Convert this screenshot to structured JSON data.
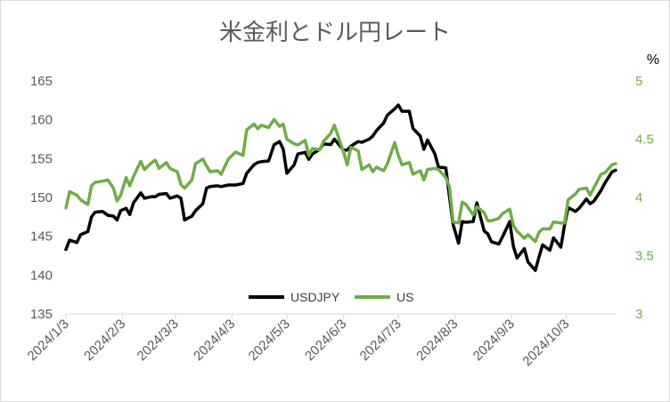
{
  "chart_data": {
    "type": "line",
    "title": "米金利とドル円レート",
    "x_tick_labels": [
      "2024/1/3",
      "2024/2/3",
      "2024/3/3",
      "2024/4/3",
      "2024/5/3",
      "2024/6/3",
      "2024/7/3",
      "2024/8/3",
      "2024/9/3",
      "2024/10/3"
    ],
    "y_left": {
      "range": [
        135,
        165
      ],
      "ticks": [
        "135",
        "140",
        "145",
        "150",
        "155",
        "160",
        "165"
      ]
    },
    "y_right": {
      "range": [
        3,
        5
      ],
      "ticks": [
        "3",
        "3.5",
        "4",
        "4.5",
        "5"
      ],
      "unit": "%"
    },
    "legend": {
      "position": "bottom-center"
    },
    "grid": false,
    "series": [
      {
        "name": "USDJPY",
        "axis": "left",
        "color": "#000000",
        "values": [
          [
            "2024-01-03",
            143.3
          ],
          [
            "2024-01-05",
            144.5
          ],
          [
            "2024-01-09",
            144.2
          ],
          [
            "2024-01-11",
            145.2
          ],
          [
            "2024-01-15",
            145.6
          ],
          [
            "2024-01-17",
            147.5
          ],
          [
            "2024-01-19",
            148.1
          ],
          [
            "2024-01-23",
            148.2
          ],
          [
            "2024-01-26",
            147.7
          ],
          [
            "2024-01-29",
            147.6
          ],
          [
            "2024-01-31",
            147.1
          ],
          [
            "2024-02-02",
            148.3
          ],
          [
            "2024-02-05",
            148.6
          ],
          [
            "2024-02-07",
            147.8
          ],
          [
            "2024-02-09",
            149.3
          ],
          [
            "2024-02-13",
            150.6
          ],
          [
            "2024-02-15",
            149.9
          ],
          [
            "2024-02-19",
            150.1
          ],
          [
            "2024-02-21",
            150.1
          ],
          [
            "2024-02-23",
            150.4
          ],
          [
            "2024-02-27",
            150.5
          ],
          [
            "2024-02-29",
            149.9
          ],
          [
            "2024-03-04",
            150.2
          ],
          [
            "2024-03-06",
            149.9
          ],
          [
            "2024-03-08",
            147.1
          ],
          [
            "2024-03-12",
            147.6
          ],
          [
            "2024-03-14",
            148.3
          ],
          [
            "2024-03-18",
            149.2
          ],
          [
            "2024-03-20",
            151.2
          ],
          [
            "2024-03-22",
            151.4
          ],
          [
            "2024-03-26",
            151.5
          ],
          [
            "2024-03-28",
            151.4
          ],
          [
            "2024-04-01",
            151.6
          ],
          [
            "2024-04-03",
            151.6
          ],
          [
            "2024-04-05",
            151.6
          ],
          [
            "2024-04-09",
            151.8
          ],
          [
            "2024-04-11",
            153.1
          ],
          [
            "2024-04-15",
            154.2
          ],
          [
            "2024-04-17",
            154.5
          ],
          [
            "2024-04-19",
            154.6
          ],
          [
            "2024-04-23",
            154.7
          ],
          [
            "2024-04-26",
            156.8
          ],
          [
            "2024-04-29",
            157.2
          ],
          [
            "2024-05-01",
            156.2
          ],
          [
            "2024-05-03",
            153.1
          ],
          [
            "2024-05-07",
            154.2
          ],
          [
            "2024-05-09",
            155.6
          ],
          [
            "2024-05-13",
            155.8
          ],
          [
            "2024-05-15",
            154.9
          ],
          [
            "2024-05-17",
            155.6
          ],
          [
            "2024-05-21",
            156.2
          ],
          [
            "2024-05-23",
            156.9
          ],
          [
            "2024-05-27",
            156.8
          ],
          [
            "2024-05-29",
            157.5
          ],
          [
            "2024-06-03",
            156.1
          ],
          [
            "2024-06-05",
            156.1
          ],
          [
            "2024-06-07",
            156.6
          ],
          [
            "2024-06-11",
            157.2
          ],
          [
            "2024-06-13",
            157.1
          ],
          [
            "2024-06-17",
            157.5
          ],
          [
            "2024-06-19",
            157.9
          ],
          [
            "2024-06-21",
            158.6
          ],
          [
            "2024-06-25",
            159.6
          ],
          [
            "2024-06-27",
            160.6
          ],
          [
            "2024-07-01",
            161.4
          ],
          [
            "2024-07-03",
            161.9
          ],
          [
            "2024-07-05",
            161.1
          ],
          [
            "2024-07-09",
            161.1
          ],
          [
            "2024-07-11",
            158.9
          ],
          [
            "2024-07-15",
            157.9
          ],
          [
            "2024-07-17",
            156.2
          ],
          [
            "2024-07-19",
            157.4
          ],
          [
            "2024-07-23",
            155.6
          ],
          [
            "2024-07-25",
            153.9
          ],
          [
            "2024-07-29",
            153.8
          ],
          [
            "2024-07-31",
            150.1
          ],
          [
            "2024-08-02",
            146.5
          ],
          [
            "2024-08-05",
            144.1
          ],
          [
            "2024-08-07",
            146.9
          ],
          [
            "2024-08-09",
            146.8
          ],
          [
            "2024-08-13",
            146.9
          ],
          [
            "2024-08-15",
            149.3
          ],
          [
            "2024-08-19",
            145.7
          ],
          [
            "2024-08-21",
            145.3
          ],
          [
            "2024-08-23",
            144.3
          ],
          [
            "2024-08-27",
            144.0
          ],
          [
            "2024-08-29",
            144.9
          ],
          [
            "2024-09-02",
            146.9
          ],
          [
            "2024-09-04",
            143.7
          ],
          [
            "2024-09-06",
            142.2
          ],
          [
            "2024-09-10",
            143.4
          ],
          [
            "2024-09-12",
            141.7
          ],
          [
            "2024-09-16",
            140.6
          ],
          [
            "2024-09-18",
            142.3
          ],
          [
            "2024-09-20",
            143.9
          ],
          [
            "2024-09-24",
            143.2
          ],
          [
            "2024-09-26",
            144.8
          ],
          [
            "2024-09-30",
            143.6
          ],
          [
            "2024-10-02",
            146.4
          ],
          [
            "2024-10-04",
            148.7
          ],
          [
            "2024-10-08",
            148.2
          ],
          [
            "2024-10-10",
            148.6
          ],
          [
            "2024-10-14",
            149.8
          ],
          [
            "2024-10-16",
            149.2
          ],
          [
            "2024-10-18",
            149.5
          ],
          [
            "2024-10-22",
            150.9
          ],
          [
            "2024-10-24",
            151.8
          ],
          [
            "2024-10-28",
            153.3
          ],
          [
            "2024-10-30",
            153.5
          ]
        ]
      },
      {
        "name": "US",
        "axis": "right",
        "color": "#70ad47",
        "values": [
          [
            "2024-01-03",
            3.91
          ],
          [
            "2024-01-05",
            4.05
          ],
          [
            "2024-01-09",
            4.02
          ],
          [
            "2024-01-11",
            3.98
          ],
          [
            "2024-01-15",
            3.94
          ],
          [
            "2024-01-17",
            4.1
          ],
          [
            "2024-01-19",
            4.13
          ],
          [
            "2024-01-23",
            4.14
          ],
          [
            "2024-01-26",
            4.15
          ],
          [
            "2024-01-29",
            4.08
          ],
          [
            "2024-01-31",
            3.97
          ],
          [
            "2024-02-02",
            4.02
          ],
          [
            "2024-02-05",
            4.17
          ],
          [
            "2024-02-07",
            4.1
          ],
          [
            "2024-02-09",
            4.18
          ],
          [
            "2024-02-13",
            4.31
          ],
          [
            "2024-02-15",
            4.24
          ],
          [
            "2024-02-19",
            4.3
          ],
          [
            "2024-02-21",
            4.32
          ],
          [
            "2024-02-23",
            4.25
          ],
          [
            "2024-02-27",
            4.3
          ],
          [
            "2024-02-29",
            4.25
          ],
          [
            "2024-03-04",
            4.22
          ],
          [
            "2024-03-06",
            4.11
          ],
          [
            "2024-03-08",
            4.08
          ],
          [
            "2024-03-12",
            4.15
          ],
          [
            "2024-03-14",
            4.29
          ],
          [
            "2024-03-18",
            4.33
          ],
          [
            "2024-03-20",
            4.27
          ],
          [
            "2024-03-22",
            4.22
          ],
          [
            "2024-03-26",
            4.23
          ],
          [
            "2024-03-28",
            4.2
          ],
          [
            "2024-04-01",
            4.33
          ],
          [
            "2024-04-03",
            4.36
          ],
          [
            "2024-04-05",
            4.39
          ],
          [
            "2024-04-09",
            4.36
          ],
          [
            "2024-04-11",
            4.58
          ],
          [
            "2024-04-15",
            4.63
          ],
          [
            "2024-04-17",
            4.59
          ],
          [
            "2024-04-19",
            4.62
          ],
          [
            "2024-04-23",
            4.6
          ],
          [
            "2024-04-26",
            4.67
          ],
          [
            "2024-04-29",
            4.61
          ],
          [
            "2024-05-01",
            4.63
          ],
          [
            "2024-05-03",
            4.5
          ],
          [
            "2024-05-07",
            4.46
          ],
          [
            "2024-05-09",
            4.45
          ],
          [
            "2024-05-13",
            4.49
          ],
          [
            "2024-05-15",
            4.36
          ],
          [
            "2024-05-17",
            4.42
          ],
          [
            "2024-05-21",
            4.41
          ],
          [
            "2024-05-23",
            4.48
          ],
          [
            "2024-05-27",
            4.55
          ],
          [
            "2024-05-29",
            4.62
          ],
          [
            "2024-06-03",
            4.39
          ],
          [
            "2024-06-05",
            4.28
          ],
          [
            "2024-06-07",
            4.43
          ],
          [
            "2024-06-11",
            4.4
          ],
          [
            "2024-06-13",
            4.24
          ],
          [
            "2024-06-17",
            4.28
          ],
          [
            "2024-06-19",
            4.22
          ],
          [
            "2024-06-21",
            4.26
          ],
          [
            "2024-06-25",
            4.23
          ],
          [
            "2024-06-27",
            4.29
          ],
          [
            "2024-07-01",
            4.47
          ],
          [
            "2024-07-03",
            4.36
          ],
          [
            "2024-07-05",
            4.28
          ],
          [
            "2024-07-09",
            4.3
          ],
          [
            "2024-07-11",
            4.2
          ],
          [
            "2024-07-15",
            4.23
          ],
          [
            "2024-07-17",
            4.15
          ],
          [
            "2024-07-19",
            4.24
          ],
          [
            "2024-07-23",
            4.25
          ],
          [
            "2024-07-25",
            4.24
          ],
          [
            "2024-07-29",
            4.17
          ],
          [
            "2024-07-31",
            4.09
          ],
          [
            "2024-08-02",
            3.79
          ],
          [
            "2024-08-05",
            3.78
          ],
          [
            "2024-08-07",
            3.96
          ],
          [
            "2024-08-09",
            3.94
          ],
          [
            "2024-08-13",
            3.85
          ],
          [
            "2024-08-15",
            3.92
          ],
          [
            "2024-08-19",
            3.87
          ],
          [
            "2024-08-21",
            3.8
          ],
          [
            "2024-08-23",
            3.8
          ],
          [
            "2024-08-27",
            3.82
          ],
          [
            "2024-08-29",
            3.86
          ],
          [
            "2024-09-02",
            3.9
          ],
          [
            "2024-09-04",
            3.76
          ],
          [
            "2024-09-06",
            3.71
          ],
          [
            "2024-09-10",
            3.65
          ],
          [
            "2024-09-12",
            3.68
          ],
          [
            "2024-09-16",
            3.62
          ],
          [
            "2024-09-18",
            3.7
          ],
          [
            "2024-09-20",
            3.73
          ],
          [
            "2024-09-24",
            3.73
          ],
          [
            "2024-09-26",
            3.79
          ],
          [
            "2024-09-30",
            3.78
          ],
          [
            "2024-10-02",
            3.78
          ],
          [
            "2024-10-04",
            3.98
          ],
          [
            "2024-10-08",
            4.03
          ],
          [
            "2024-10-10",
            4.07
          ],
          [
            "2024-10-14",
            4.08
          ],
          [
            "2024-10-16",
            4.02
          ],
          [
            "2024-10-18",
            4.08
          ],
          [
            "2024-10-22",
            4.2
          ],
          [
            "2024-10-24",
            4.21
          ],
          [
            "2024-10-28",
            4.28
          ],
          [
            "2024-10-30",
            4.29
          ]
        ]
      }
    ]
  }
}
